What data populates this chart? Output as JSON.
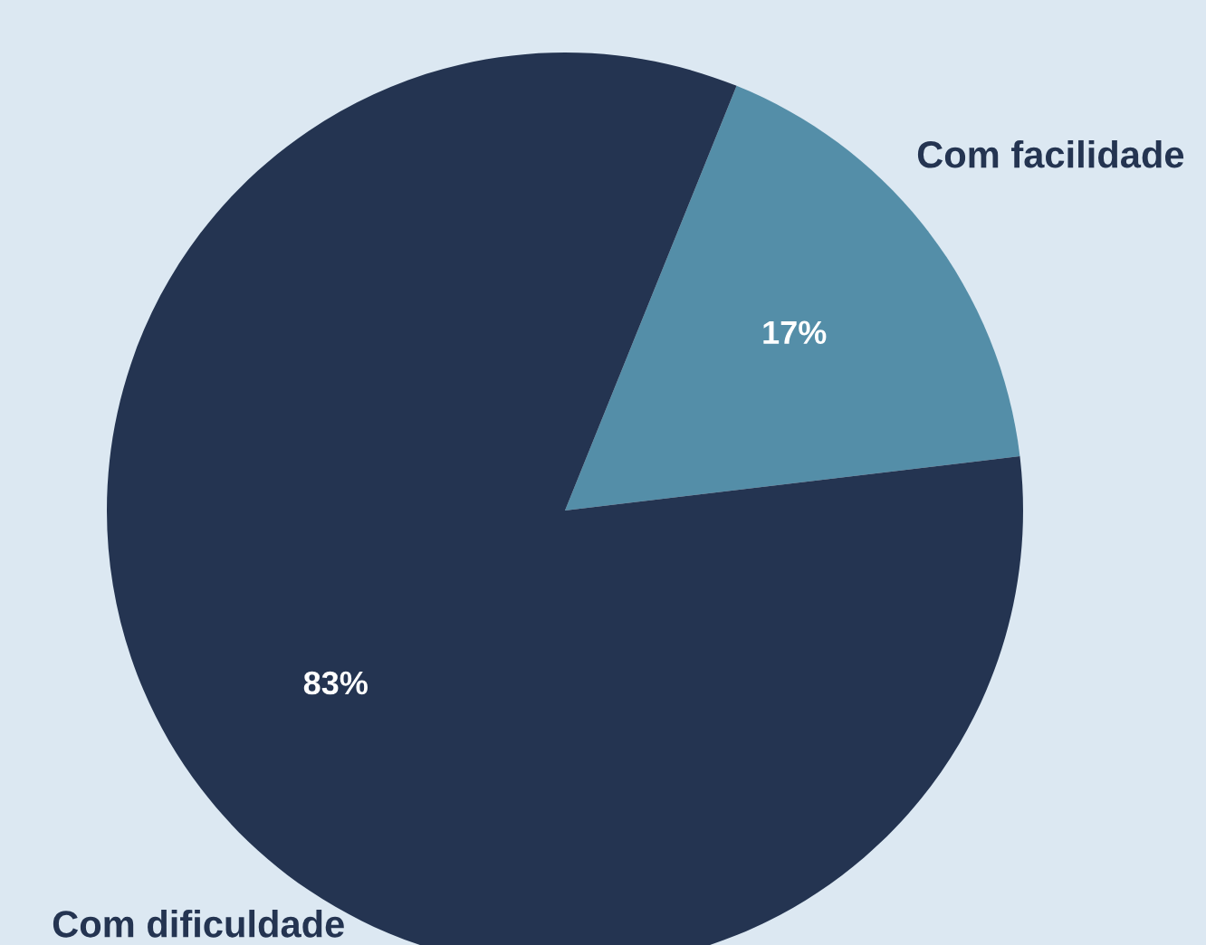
{
  "chart_data": {
    "type": "pie",
    "categories": [
      "Com facilidade",
      "Com dificuldade"
    ],
    "values": [
      17,
      83
    ],
    "colors": [
      "#548ea8",
      "#243451"
    ],
    "value_labels": [
      "17%",
      "83%"
    ]
  }
}
